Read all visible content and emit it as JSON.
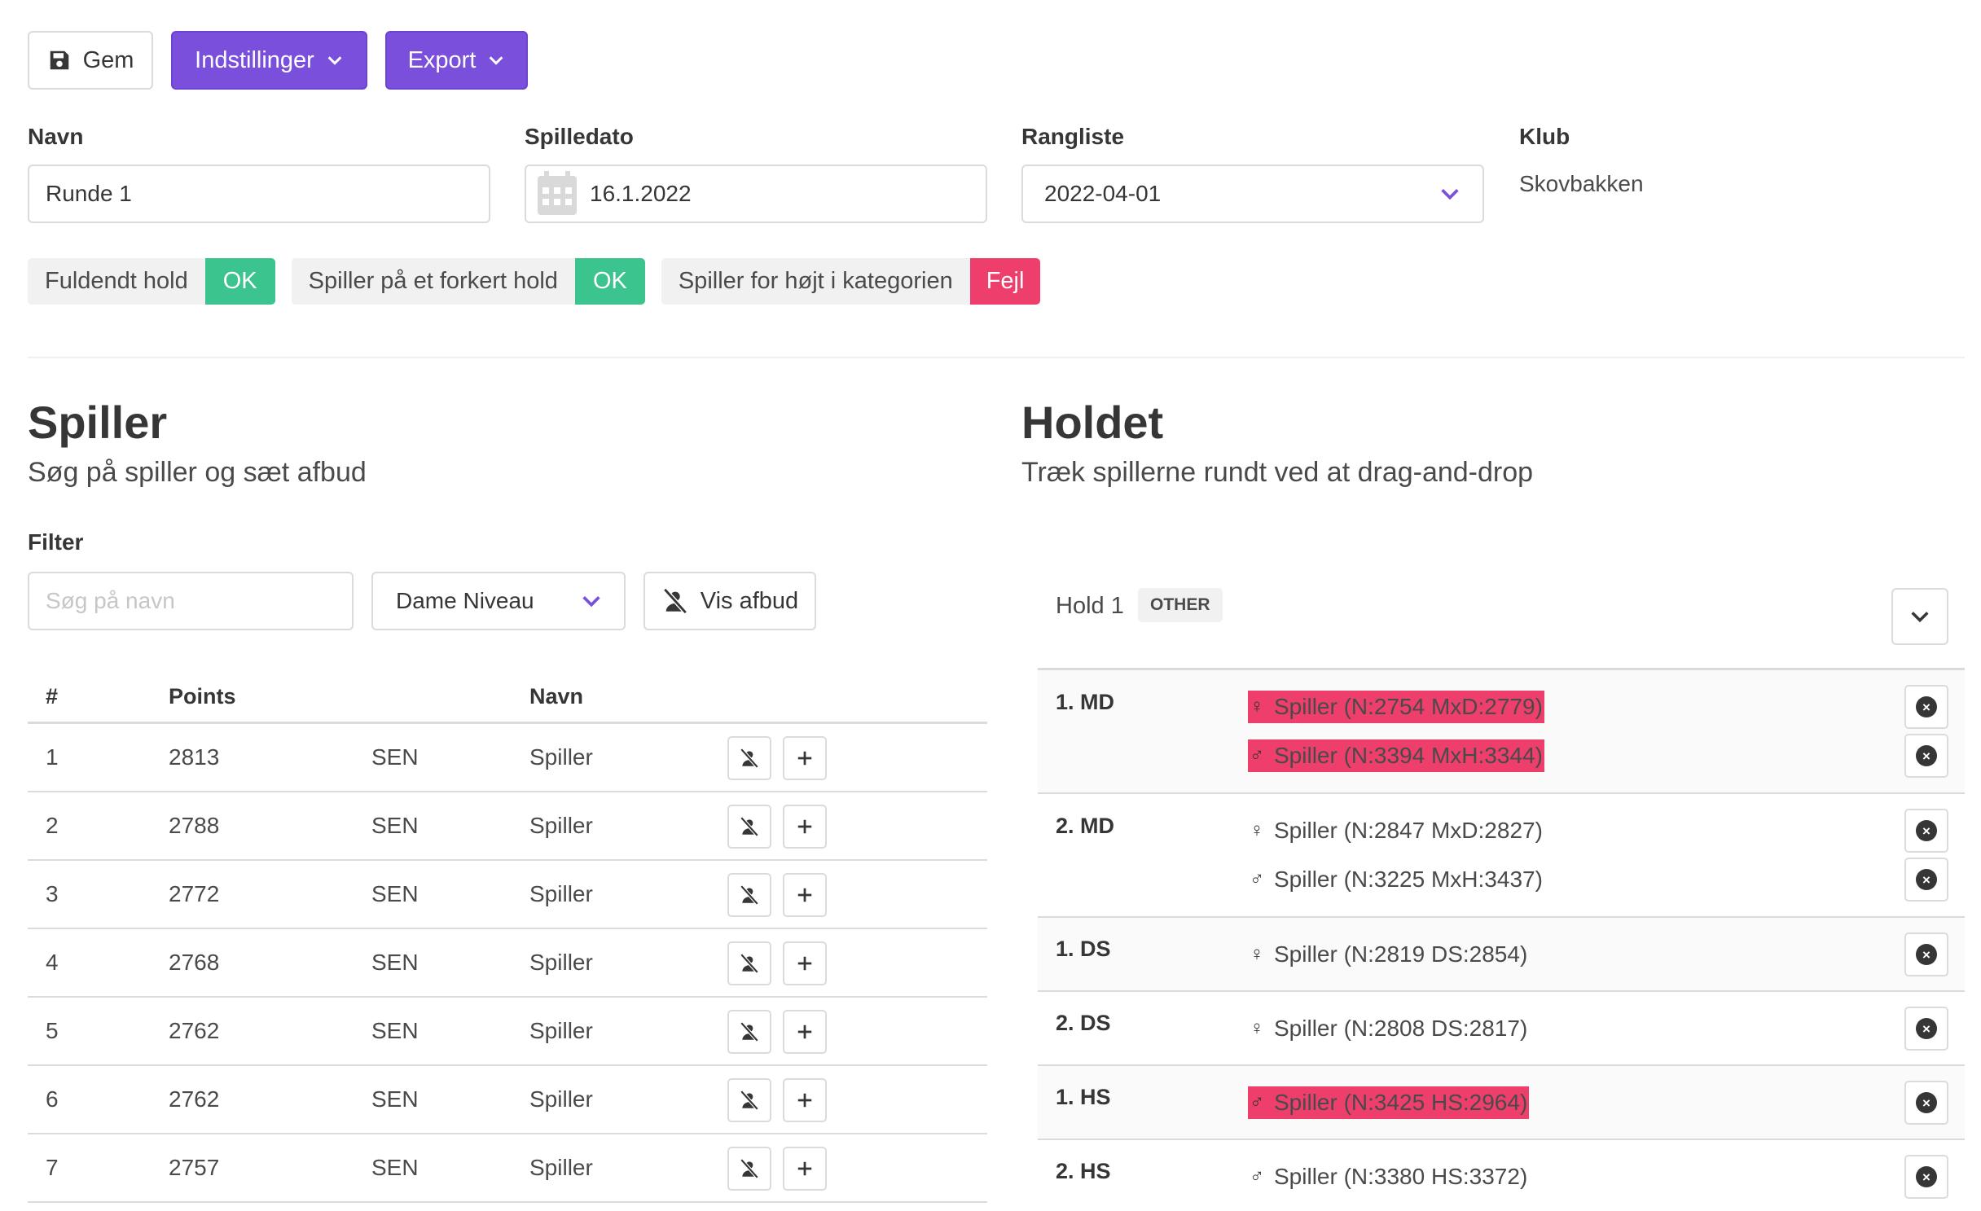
{
  "toolbar": {
    "save_label": "Gem",
    "settings_label": "Indstillinger",
    "export_label": "Export"
  },
  "form": {
    "name_label": "Navn",
    "name_value": "Runde 1",
    "date_label": "Spilledato",
    "date_value": "16.1.2022",
    "ranking_label": "Rangliste",
    "ranking_value": "2022-04-01",
    "club_label": "Klub",
    "club_value": "Skovbakken"
  },
  "status": [
    {
      "label": "Fuldendt hold",
      "result": "OK"
    },
    {
      "label": "Spiller på et forkert hold",
      "result": "OK"
    },
    {
      "label": "Spiller for højt i kategorien",
      "result": "Fejl"
    }
  ],
  "players_section": {
    "title": "Spiller",
    "subtitle": "Søg på spiller og sæt afbud",
    "filter_label": "Filter",
    "search_placeholder": "Søg på navn",
    "level_select": "Dame Niveau",
    "show_absent_label": "Vis afbud",
    "columns": {
      "rank": "#",
      "points": "Points",
      "name": "Navn"
    },
    "rows": [
      {
        "rank": "1",
        "points": "2813",
        "group": "SEN",
        "name": "Spiller"
      },
      {
        "rank": "2",
        "points": "2788",
        "group": "SEN",
        "name": "Spiller"
      },
      {
        "rank": "3",
        "points": "2772",
        "group": "SEN",
        "name": "Spiller"
      },
      {
        "rank": "4",
        "points": "2768",
        "group": "SEN",
        "name": "Spiller"
      },
      {
        "rank": "5",
        "points": "2762",
        "group": "SEN",
        "name": "Spiller"
      },
      {
        "rank": "6",
        "points": "2762",
        "group": "SEN",
        "name": "Spiller"
      },
      {
        "rank": "7",
        "points": "2757",
        "group": "SEN",
        "name": "Spiller"
      }
    ]
  },
  "team_section": {
    "title": "Holdet",
    "subtitle": "Træk spillerne rundt ved at drag-and-drop",
    "team_name": "Hold 1",
    "team_tag": "OTHER",
    "colors": {
      "error": "#ee3e6b",
      "ok": "#3cc48f",
      "accent": "#7a4fdc"
    },
    "matches": [
      {
        "category": "1. MD",
        "players": [
          {
            "gender": "♀",
            "text": "Spiller (N:2754 MxD:2779)",
            "error": true
          },
          {
            "gender": "♂",
            "text": "Spiller (N:3394 MxH:3344)",
            "error": true
          }
        ]
      },
      {
        "category": "2. MD",
        "players": [
          {
            "gender": "♀",
            "text": "Spiller (N:2847 MxD:2827)",
            "error": false
          },
          {
            "gender": "♂",
            "text": "Spiller (N:3225 MxH:3437)",
            "error": false
          }
        ]
      },
      {
        "category": "1. DS",
        "players": [
          {
            "gender": "♀",
            "text": "Spiller (N:2819 DS:2854)",
            "error": false
          }
        ]
      },
      {
        "category": "2. DS",
        "players": [
          {
            "gender": "♀",
            "text": "Spiller (N:2808 DS:2817)",
            "error": false
          }
        ]
      },
      {
        "category": "1. HS",
        "players": [
          {
            "gender": "♂",
            "text": "Spiller (N:3425 HS:2964)",
            "error": true
          }
        ]
      },
      {
        "category": "2. HS",
        "players": [
          {
            "gender": "♂",
            "text": "Spiller (N:3380 HS:3372)",
            "error": false
          }
        ]
      }
    ]
  }
}
